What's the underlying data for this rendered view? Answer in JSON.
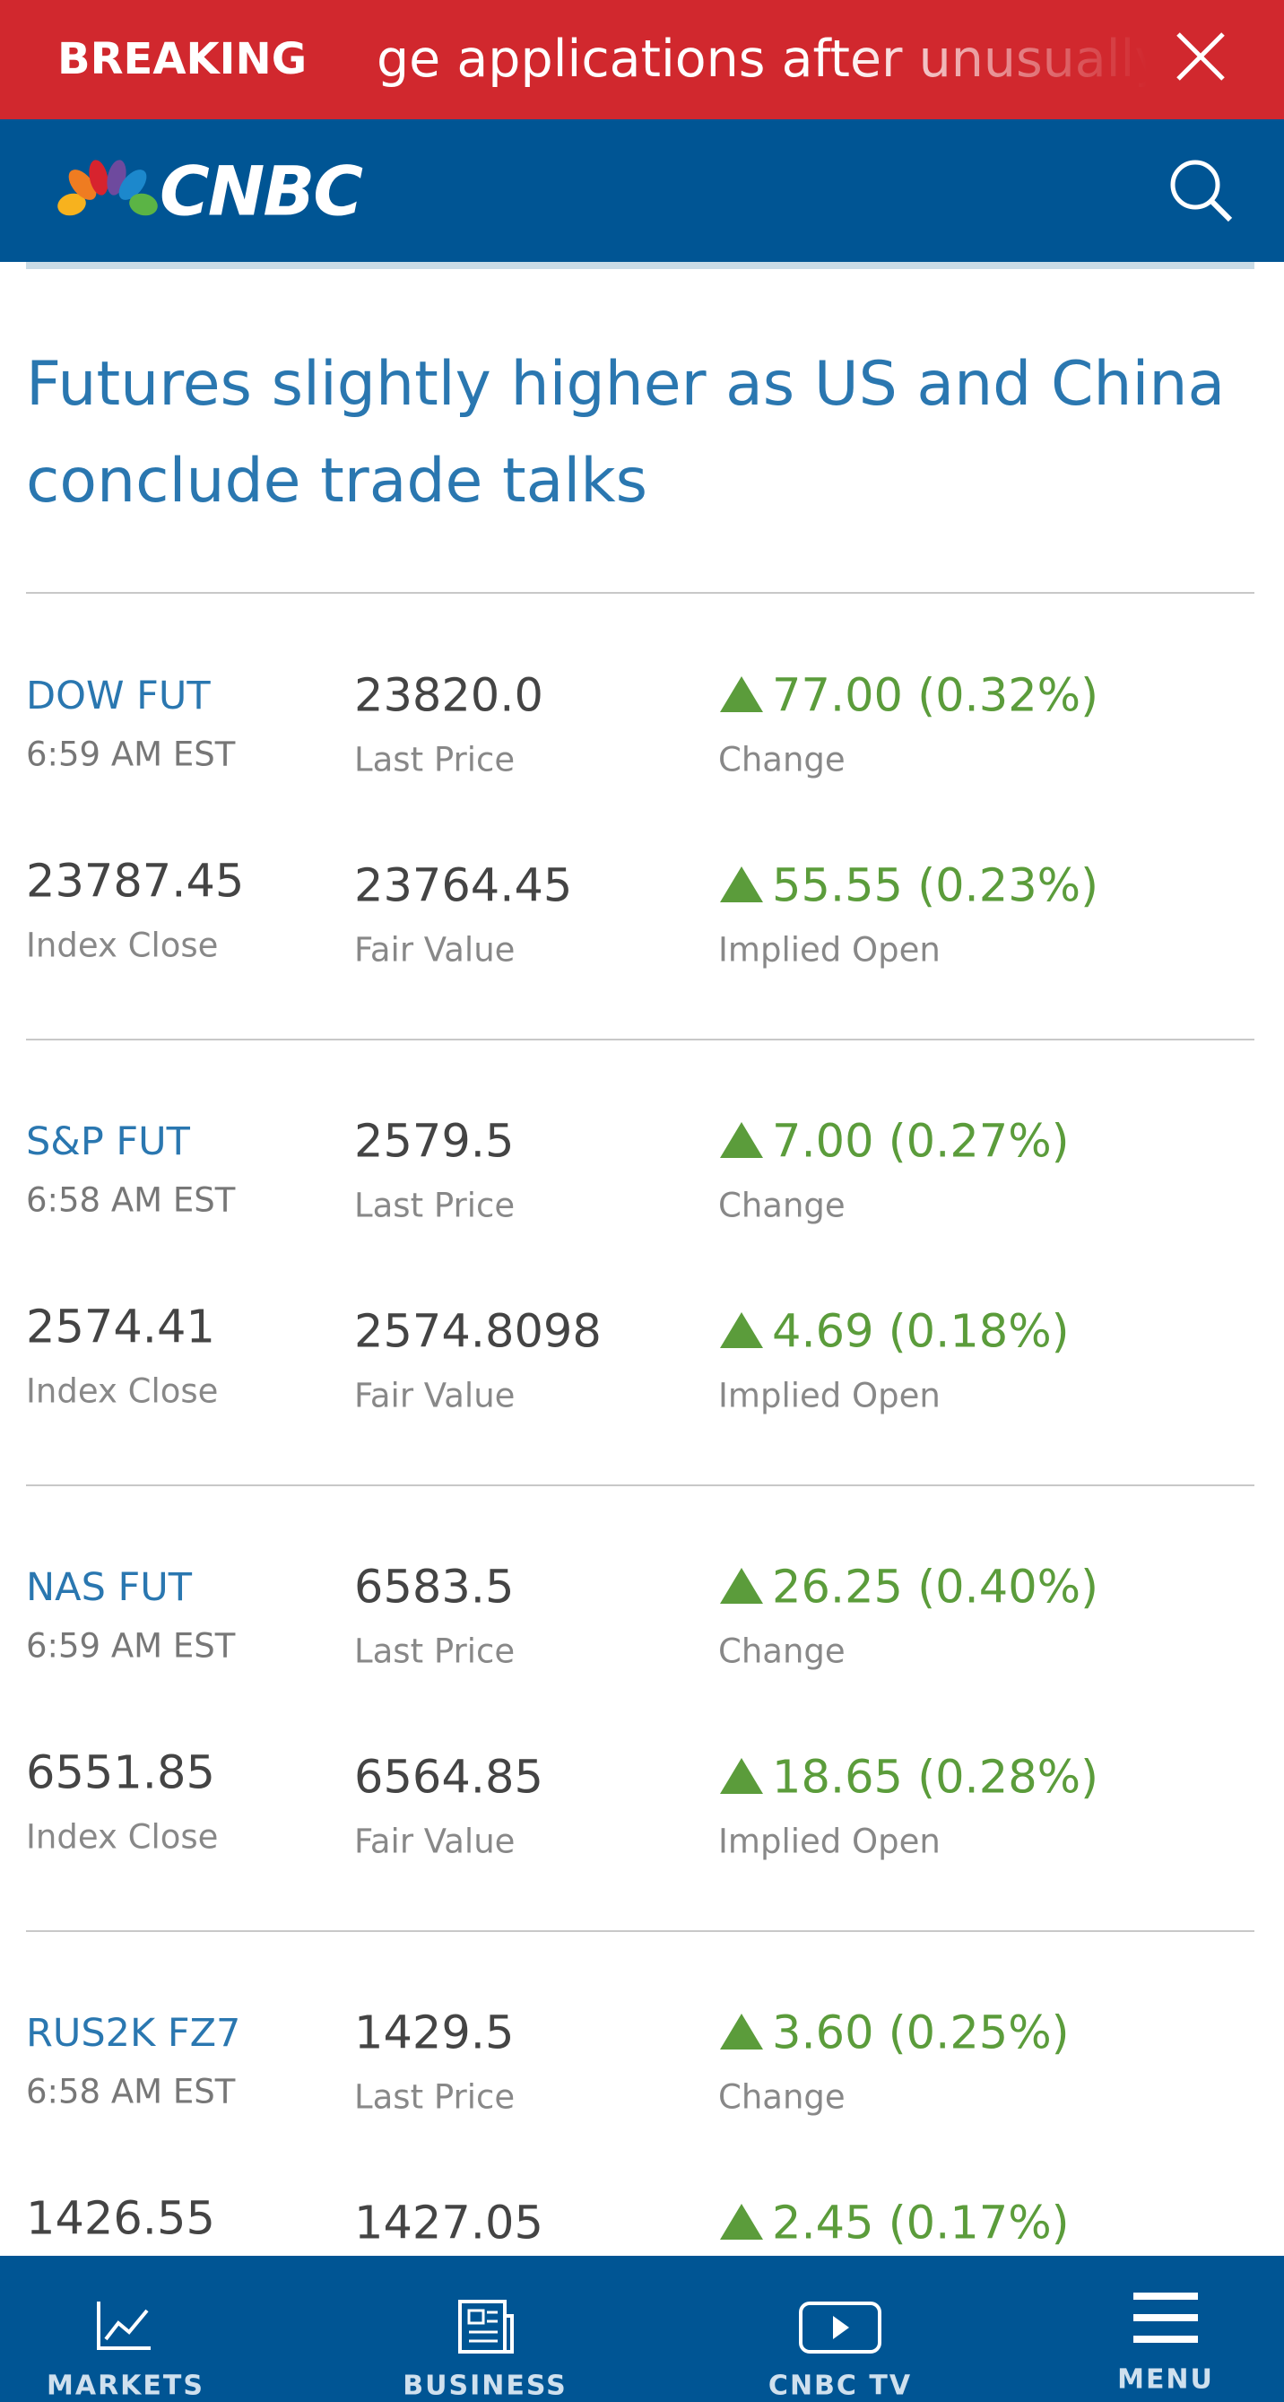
{
  "breaking": {
    "label": "BREAKING",
    "ticker": "ge applications after unusually"
  },
  "logo": "CNBC",
  "headline": "Futures slightly higher as US and China conclude trade talks",
  "quotes": [
    {
      "name": "DOW FUT",
      "time": "6:59 AM EST",
      "last_price": "23820.0",
      "last_price_label": "Last Price",
      "change": "77.00 (0.32%)",
      "change_label": "Change",
      "index_close": "23787.45",
      "index_close_label": "Index Close",
      "fair_value": "23764.45",
      "fair_value_label": "Fair Value",
      "implied_open": "55.55 (0.23%)",
      "implied_open_label": "Implied Open"
    },
    {
      "name": "S&P FUT",
      "time": "6:58 AM EST",
      "last_price": "2579.5",
      "last_price_label": "Last Price",
      "change": "7.00 (0.27%)",
      "change_label": "Change",
      "index_close": "2574.41",
      "index_close_label": "Index Close",
      "fair_value": "2574.8098",
      "fair_value_label": "Fair Value",
      "implied_open": "4.69 (0.18%)",
      "implied_open_label": "Implied Open"
    },
    {
      "name": "NAS FUT",
      "time": "6:59 AM EST",
      "last_price": "6583.5",
      "last_price_label": "Last Price",
      "change": "26.25 (0.40%)",
      "change_label": "Change",
      "index_close": "6551.85",
      "index_close_label": "Index Close",
      "fair_value": "6564.85",
      "fair_value_label": "Fair Value",
      "implied_open": "18.65 (0.28%)",
      "implied_open_label": "Implied Open"
    },
    {
      "name": "RUS2K FZ7",
      "time": "6:58 AM EST",
      "last_price": "1429.5",
      "last_price_label": "Last Price",
      "change": "3.60 (0.25%)",
      "change_label": "Change",
      "index_close": "1426.55",
      "fair_value": "1427.05",
      "implied_open": "2.45 (0.17%)"
    }
  ],
  "nav": [
    "MARKETS",
    "BUSINESS",
    "CNBC TV",
    "MENU"
  ]
}
